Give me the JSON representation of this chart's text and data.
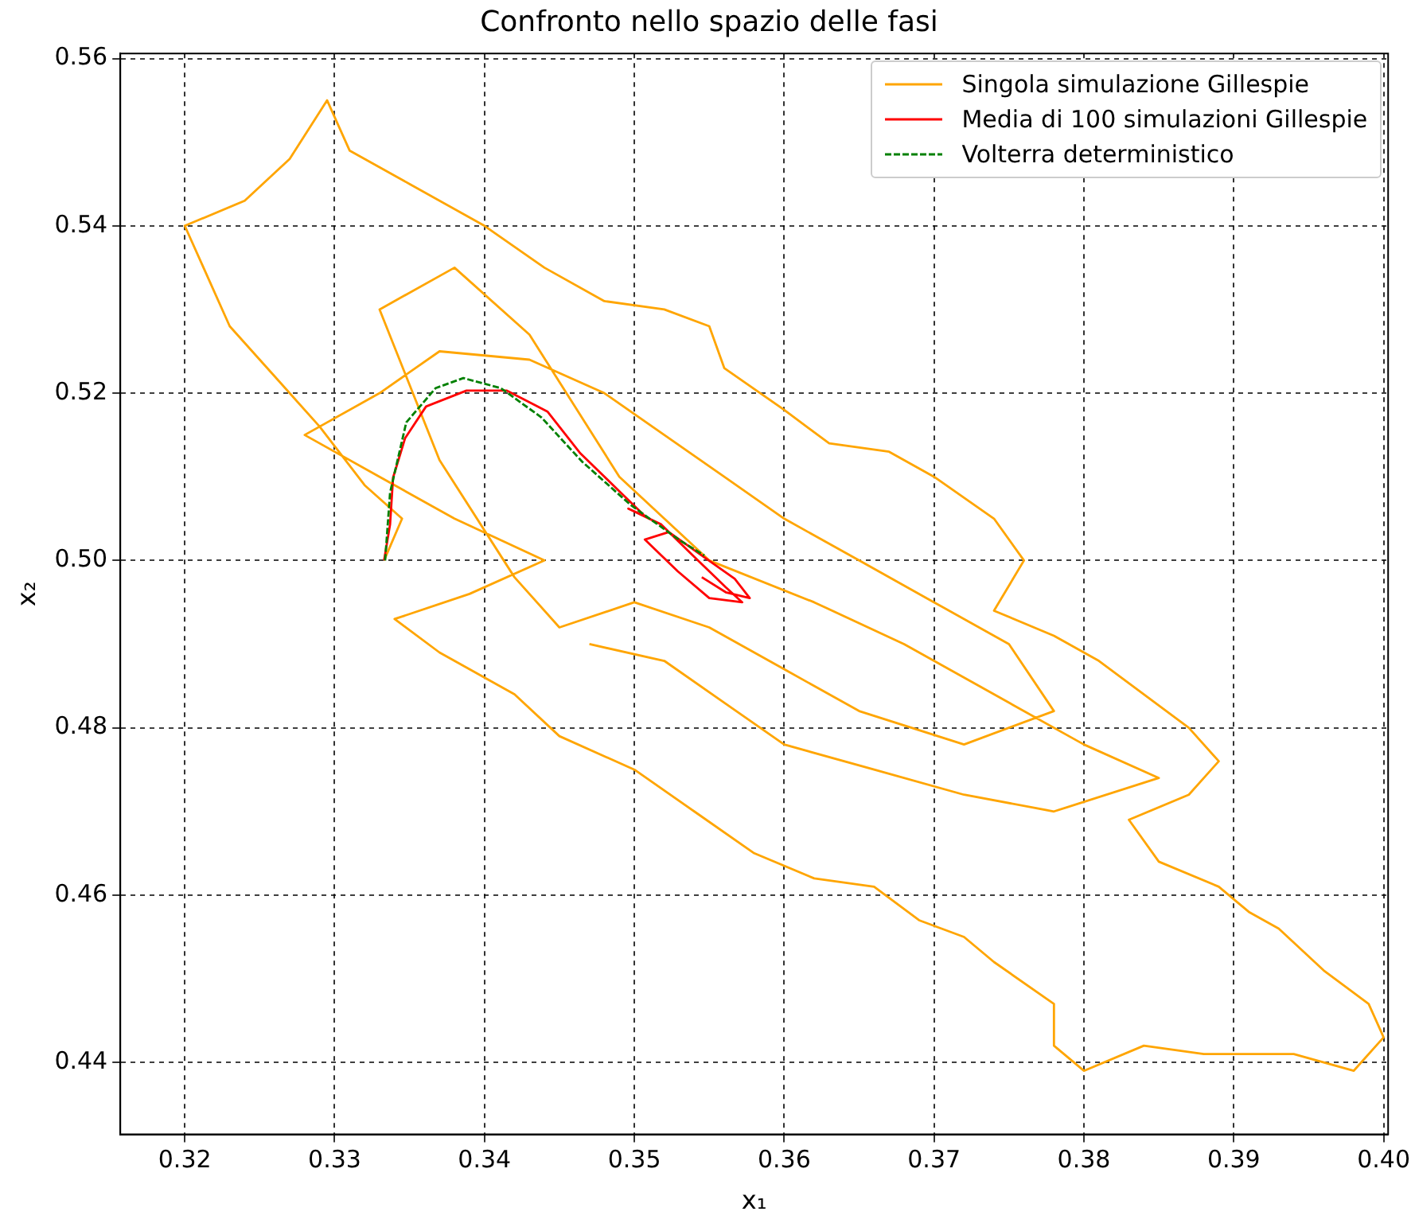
{
  "chart_data": {
    "type": "line",
    "title": "Confronto nello spazio delle fasi",
    "xlabel": "x₁",
    "ylabel": "x₂",
    "xlim": [
      0.3157,
      0.4003
    ],
    "ylim": [
      0.4314,
      0.5606
    ],
    "xticks": [
      0.32,
      0.33,
      0.34,
      0.35,
      0.36,
      0.37,
      0.38,
      0.39,
      {
        "value": 0.4,
        "label": "0.40"
      }
    ],
    "yticks": [
      0.44,
      0.46,
      0.48,
      {
        "value": 0.5,
        "label": "0.50"
      },
      0.52,
      0.54,
      0.56
    ],
    "grid": true,
    "legend": "top right",
    "marker": "none",
    "series": [
      {
        "name": "Singola simulazione Gillespie",
        "color": "#ffa500",
        "line_style": "solid",
        "x": [
          0.3333,
          0.3345,
          0.332,
          0.329,
          0.326,
          0.323,
          0.32,
          0.324,
          0.327,
          0.3295,
          0.331,
          0.335,
          0.34,
          0.344,
          0.348,
          0.352,
          0.355,
          0.356,
          0.36,
          0.363,
          0.367,
          0.37,
          0.374,
          0.376,
          0.374,
          0.378,
          0.381,
          0.384,
          0.387,
          0.389,
          0.387,
          0.383,
          0.385,
          0.389,
          0.391,
          0.393,
          0.396,
          0.399,
          0.4,
          0.398,
          0.394,
          0.388,
          0.384,
          0.38,
          0.378,
          0.378,
          0.374,
          0.372,
          0.369,
          0.366,
          0.362,
          0.358,
          0.354,
          0.35,
          0.345,
          0.342,
          0.337,
          0.334,
          0.339,
          0.344,
          0.338,
          0.333,
          0.328,
          0.333,
          0.337,
          0.343,
          0.348,
          0.352,
          0.356,
          0.36,
          0.365,
          0.37,
          0.375,
          0.378,
          0.372,
          0.365,
          0.36,
          0.355,
          0.35,
          0.345,
          0.342,
          0.337,
          0.333,
          0.338,
          0.343,
          0.349,
          0.355,
          0.362,
          0.368,
          0.373,
          0.38,
          0.385,
          0.378,
          0.372,
          0.366,
          0.36,
          0.356,
          0.352,
          0.347
        ],
        "values": [
          0.5,
          0.505,
          0.509,
          0.516,
          0.522,
          0.528,
          0.54,
          0.543,
          0.548,
          0.555,
          0.549,
          0.545,
          0.54,
          0.535,
          0.531,
          0.53,
          0.528,
          0.523,
          0.518,
          0.514,
          0.513,
          0.51,
          0.505,
          0.5,
          0.494,
          0.491,
          0.488,
          0.484,
          0.48,
          0.476,
          0.472,
          0.469,
          0.464,
          0.461,
          0.458,
          0.456,
          0.451,
          0.447,
          0.443,
          0.439,
          0.441,
          0.441,
          0.442,
          0.439,
          0.442,
          0.447,
          0.452,
          0.455,
          0.457,
          0.461,
          0.462,
          0.465,
          0.47,
          0.475,
          0.479,
          0.484,
          0.489,
          0.493,
          0.496,
          0.5,
          0.505,
          0.51,
          0.515,
          0.52,
          0.525,
          0.524,
          0.52,
          0.515,
          0.51,
          0.505,
          0.5,
          0.495,
          0.49,
          0.482,
          0.478,
          0.482,
          0.487,
          0.492,
          0.495,
          0.492,
          0.498,
          0.512,
          0.53,
          0.535,
          0.527,
          0.51,
          0.5,
          0.495,
          0.49,
          0.485,
          0.478,
          0.474,
          0.47,
          0.472,
          0.475,
          0.478,
          0.483,
          0.488,
          0.49
        ]
      },
      {
        "name": "Media di 100 simulazioni Gillespie",
        "color": "#ff0000",
        "line_style": "solid",
        "x": [
          0.3333,
          0.3337,
          0.3339,
          0.3347,
          0.3361,
          0.3388,
          0.3415,
          0.3442,
          0.3464,
          0.3491,
          0.3507,
          0.3496,
          0.3518,
          0.3539,
          0.3561,
          0.3572,
          0.355,
          0.3529,
          0.3507,
          0.3523,
          0.3545,
          0.3567,
          0.3577,
          0.3561,
          0.3545
        ],
        "values": [
          0.5,
          0.5043,
          0.5099,
          0.5146,
          0.5184,
          0.5203,
          0.5203,
          0.5178,
          0.5128,
          0.5081,
          0.5053,
          0.5062,
          0.5043,
          0.5006,
          0.4968,
          0.495,
          0.4955,
          0.4987,
          0.5025,
          0.5034,
          0.5006,
          0.4978,
          0.4955,
          0.4962,
          0.498
        ]
      },
      {
        "name": "Volterra deterministico",
        "color": "#008000",
        "line_style": "dashed",
        "x": [
          0.33337,
          0.3337,
          0.33478,
          0.33674,
          0.33859,
          0.34109,
          0.3438,
          0.34652,
          0.34978,
          0.35304,
          0.35467
        ],
        "values": [
          0.5,
          0.5081,
          0.5165,
          0.5206,
          0.5218,
          0.5206,
          0.5171,
          0.5118,
          0.5066,
          0.5024,
          0.5006
        ]
      }
    ]
  }
}
